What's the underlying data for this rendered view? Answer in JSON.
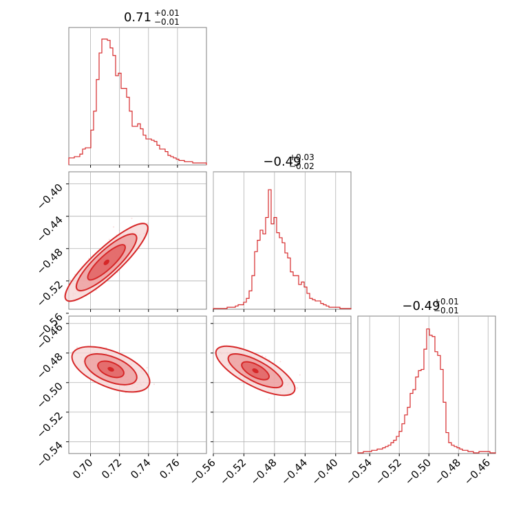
{
  "theme": {
    "accent": "#d62728",
    "fill_light": "#f6d4d4",
    "fill_mid": "#ec9a9a",
    "fill_dark": "#e05a5a",
    "grid": "#b0b0b0",
    "frame": "#7f7f7f"
  },
  "params": [
    {
      "id": "p1",
      "title_main": "0.71",
      "title_up": "+0.01",
      "title_lo": "−0.01",
      "range": [
        0.685,
        0.78
      ],
      "ticks": [
        0.7,
        0.72,
        0.74,
        0.76
      ],
      "tick_labels": [
        "0.70",
        "0.72",
        "0.74",
        "0.76"
      ]
    },
    {
      "id": "p2",
      "title_main": "−0.49",
      "title_up": "+0.03",
      "title_lo": "−0.02",
      "range": [
        -0.56,
        -0.38
      ],
      "ticks": [
        -0.56,
        -0.52,
        -0.48,
        -0.44,
        -0.4
      ],
      "tick_labels": [
        "−0.56",
        "−0.52",
        "−0.48",
        "−0.44",
        "−0.40"
      ]
    },
    {
      "id": "p3",
      "title_main": "−0.49",
      "title_up": "+0.01",
      "title_lo": "−0.01",
      "range": [
        -0.548,
        -0.455
      ],
      "ticks": [
        -0.54,
        -0.52,
        -0.5,
        -0.48,
        -0.46
      ],
      "tick_labels": [
        "−0.54",
        "−0.52",
        "−0.50",
        "−0.48",
        "−0.46"
      ]
    }
  ],
  "chart_data": {
    "type": "corner",
    "grid": true,
    "histograms": [
      {
        "param": 0,
        "counts": [
          0.05,
          0.05,
          0.06,
          0.06,
          0.08,
          0.12,
          0.13,
          0.13,
          0.27,
          0.42,
          0.67,
          0.88,
          0.99,
          0.99,
          0.98,
          0.92,
          0.86,
          0.7,
          0.72,
          0.6,
          0.6,
          0.53,
          0.42,
          0.3,
          0.3,
          0.32,
          0.28,
          0.23,
          0.2,
          0.2,
          0.19,
          0.18,
          0.15,
          0.12,
          0.12,
          0.1,
          0.07,
          0.06,
          0.05,
          0.04,
          0.03,
          0.03,
          0.02,
          0.02,
          0.02,
          0.01,
          0.01,
          0.01,
          0.01,
          0.01
        ]
      },
      {
        "param": 1,
        "counts": [
          0,
          0,
          0,
          0,
          0,
          0.01,
          0.01,
          0.01,
          0.02,
          0.03,
          0.03,
          0.05,
          0.08,
          0.14,
          0.26,
          0.45,
          0.54,
          0.62,
          0.59,
          0.72,
          0.94,
          0.67,
          0.72,
          0.6,
          0.56,
          0.52,
          0.44,
          0.4,
          0.29,
          0.26,
          0.26,
          0.19,
          0.21,
          0.17,
          0.12,
          0.08,
          0.07,
          0.06,
          0.06,
          0.04,
          0.03,
          0.02,
          0.01,
          0.01,
          0.01,
          0.01,
          0,
          0,
          0,
          0
        ]
      },
      {
        "param": 2,
        "counts": [
          0,
          0,
          0.01,
          0.01,
          0.01,
          0.02,
          0.02,
          0.03,
          0.03,
          0.04,
          0.05,
          0.06,
          0.08,
          0.1,
          0.13,
          0.17,
          0.23,
          0.3,
          0.36,
          0.47,
          0.5,
          0.6,
          0.65,
          0.66,
          0.82,
          0.98,
          0.93,
          0.92,
          0.8,
          0.77,
          0.66,
          0.4,
          0.16,
          0.08,
          0.06,
          0.05,
          0.04,
          0.03,
          0.02,
          0.02,
          0.01,
          0.01,
          0,
          0,
          0.01,
          0.01,
          0.01,
          0.01,
          0,
          0
        ]
      }
    ],
    "joint": [
      {
        "x_param": 0,
        "y_param": 1,
        "y_range": [
          -0.555,
          -0.385
        ],
        "y_ticks": [
          -0.56,
          -0.52,
          -0.48,
          -0.44,
          -0.4
        ],
        "y_tick_labels": [
          "−0.56",
          "−0.52",
          "−0.48",
          "−0.44",
          "−0.40"
        ],
        "center": [
          0.711,
          -0.497
        ],
        "angle_deg": -43,
        "contours": [
          {
            "level": 0.39,
            "rx": 36,
            "ry": 10
          },
          {
            "level": 0.86,
            "rx": 58,
            "ry": 16
          },
          {
            "level": 0.99,
            "rx": 80,
            "ry": 20
          }
        ]
      },
      {
        "x_param": 0,
        "y_param": 2,
        "y_range": [
          -0.548,
          -0.455
        ],
        "y_ticks": [
          -0.54,
          -0.52,
          -0.5,
          -0.48,
          -0.46
        ],
        "y_tick_labels": [
          "−0.54",
          "−0.52",
          "−0.50",
          "−0.48",
          "−0.46"
        ],
        "center": [
          0.714,
          -0.491
        ],
        "angle_deg": 22,
        "contours": [
          {
            "level": 0.39,
            "rx": 20,
            "ry": 10
          },
          {
            "level": 0.86,
            "rx": 40,
            "ry": 18
          },
          {
            "level": 0.99,
            "rx": 60,
            "ry": 26
          }
        ]
      },
      {
        "x_param": 1,
        "y_param": 2,
        "y_range": [
          -0.548,
          -0.455
        ],
        "center": [
          -0.505,
          -0.492
        ],
        "angle_deg": 28,
        "contours": [
          {
            "level": 0.39,
            "rx": 22,
            "ry": 9
          },
          {
            "level": 0.86,
            "rx": 44,
            "ry": 15
          },
          {
            "level": 0.99,
            "rx": 64,
            "ry": 22
          }
        ]
      }
    ]
  }
}
